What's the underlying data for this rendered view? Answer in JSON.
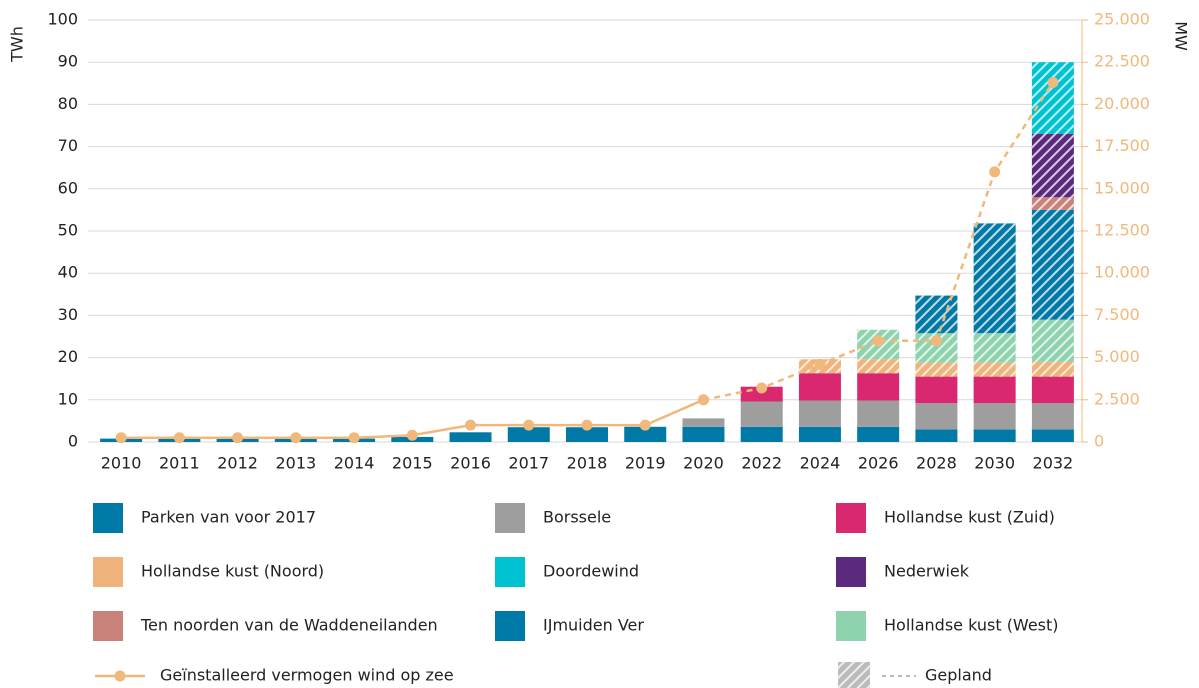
{
  "chart_data": {
    "type": "bar",
    "y_label": "TWh",
    "y2_label": "MW",
    "categories": [
      "2010",
      "2011",
      "2012",
      "2013",
      "2014",
      "2015",
      "2016",
      "2017",
      "2018",
      "2019",
      "2020",
      "2022",
      "2024",
      "2026",
      "2028",
      "2030",
      "2032"
    ],
    "ylim": [
      0,
      100
    ],
    "yticks": [
      0,
      10,
      20,
      30,
      40,
      50,
      60,
      70,
      80,
      90,
      100
    ],
    "y2lim": [
      0,
      25000
    ],
    "y2ticks": [
      0,
      {
        "value": 2500,
        "label": "2.500"
      },
      {
        "value": 5000,
        "label": "5.000"
      },
      {
        "value": 7500,
        "label": "7.500"
      },
      {
        "value": 10000,
        "label": "10.000"
      },
      {
        "value": 12500,
        "label": "12.500"
      },
      {
        "value": 15000,
        "label": "15.000"
      },
      {
        "value": 17500,
        "label": "17.500"
      },
      {
        "value": 20000,
        "label": "20.000"
      },
      {
        "value": 22500,
        "label": "22.500"
      },
      {
        "value": 25000,
        "label": "25.000"
      }
    ],
    "grid": true,
    "series": [
      {
        "name": "Parken van voor 2017",
        "color": "#0079a6",
        "hatched": false,
        "values": [
          0.8,
          0.8,
          0.8,
          0.8,
          0.8,
          1.2,
          2.3,
          3.5,
          3.5,
          3.6,
          3.6,
          3.6,
          3.6,
          3.6,
          3.0,
          3.0,
          3.0
        ]
      },
      {
        "name": "Borssele",
        "color": "#9e9e9e",
        "hatched": false,
        "values": [
          0,
          0,
          0,
          0,
          0,
          0,
          0,
          0,
          0,
          0,
          2.0,
          6.0,
          6.2,
          6.2,
          6.2,
          6.2,
          6.2
        ]
      },
      {
        "name": "Hollandse kust (Zuid)",
        "color": "#d9286f",
        "hatched": false,
        "values": [
          0,
          0,
          0,
          0,
          0,
          0,
          0,
          0,
          0,
          0,
          0,
          3.5,
          6.5,
          6.5,
          6.3,
          6.3,
          6.3
        ]
      },
      {
        "name": "Hollandse kust (Noord)",
        "color": "#f0b37b",
        "hatched": true,
        "values": [
          0,
          0,
          0,
          0,
          0,
          0,
          0,
          0,
          0,
          0,
          0,
          0,
          3.3,
          3.3,
          3.3,
          3.3,
          3.5
        ]
      },
      {
        "name": "Hollandse kust (West)",
        "color": "#8fd2ae",
        "hatched": true,
        "values": [
          0,
          0,
          0,
          0,
          0,
          0,
          0,
          0,
          0,
          0,
          0,
          0,
          0,
          7.0,
          7.0,
          7.0,
          10.0
        ]
      },
      {
        "name": "IJmuiden Ver",
        "color": "#0079a6",
        "hatched": true,
        "values": [
          0,
          0,
          0,
          0,
          0,
          0,
          0,
          0,
          0,
          0,
          0,
          0,
          0,
          0,
          8.9,
          26.0,
          26.0
        ]
      },
      {
        "name": "Ten noorden van de Waddeneilanden",
        "color": "#c8827a",
        "hatched": true,
        "values": [
          0,
          0,
          0,
          0,
          0,
          0,
          0,
          0,
          0,
          0,
          0,
          0,
          0,
          0,
          0,
          0,
          3.0
        ]
      },
      {
        "name": "Nederwiek",
        "color": "#5b2a7e",
        "hatched": true,
        "values": [
          0,
          0,
          0,
          0,
          0,
          0,
          0,
          0,
          0,
          0,
          0,
          0,
          0,
          0,
          0,
          0,
          15.0
        ]
      },
      {
        "name": "Doordewind",
        "color": "#00c3d2",
        "hatched": true,
        "values": [
          0,
          0,
          0,
          0,
          0,
          0,
          0,
          0,
          0,
          0,
          0,
          0,
          0,
          0,
          0,
          0,
          17.0
        ]
      },
      {
        "name": "Geïnstalleerd vermogen wind op zee",
        "type": "line",
        "axis": "y2",
        "color": "#f0b87a",
        "solid_until": "2020",
        "values": [
          250,
          250,
          250,
          250,
          250,
          400,
          1000,
          1000,
          1000,
          1000,
          2500,
          3200,
          4600,
          6000,
          6000,
          16000,
          21300
        ]
      }
    ],
    "legend_order": [
      0,
      1,
      2,
      3,
      8,
      7,
      6,
      5,
      4
    ],
    "planned_label": "Gepland"
  }
}
